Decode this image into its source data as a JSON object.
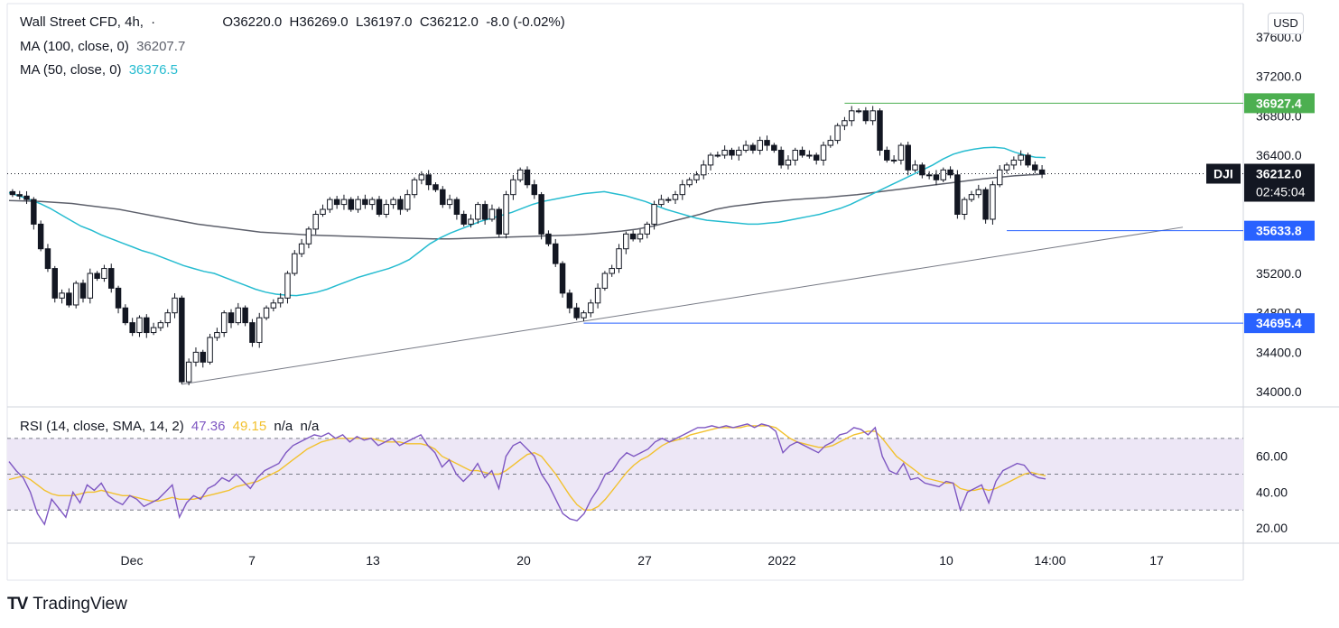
{
  "header": {
    "symbol": "Wall Street CFD, 4h,",
    "dot": "·",
    "ohlc": "O36220.0  H36269.0  L36197.0  C36212.0  -8.0 (-0.02%)",
    "ma100_label": "MA (100, close, 0)",
    "ma100_value": "36207.7",
    "ma50_label": "MA (50, close, 0)",
    "ma50_value": "36376.5",
    "rsi_label": "RSI (14, close, SMA, 14, 2)",
    "rsi_value": "47.36",
    "rsi_ma_value": "49.15",
    "rsi_na": "n/a  n/a"
  },
  "currency_button": "USD",
  "branding": {
    "logo": "TV",
    "name": "TradingView"
  },
  "price_axis": {
    "ticks": [
      "37600.0",
      "37200.0",
      "36800.0",
      "36400.0",
      "35200.0",
      "34800.0",
      "34400.0",
      "34000.0"
    ],
    "ticker_badge": "DJI",
    "current_price": "36212.0",
    "countdown": "02:45:04",
    "levels": [
      {
        "label": "36927.4",
        "color": "#4caf50"
      },
      {
        "label": "35633.8",
        "color": "#2962ff"
      },
      {
        "label": "34695.4",
        "color": "#2962ff"
      }
    ]
  },
  "rsi_axis": {
    "ticks": [
      "60.00",
      "40.00",
      "20.00"
    ]
  },
  "time_axis": {
    "ticks": [
      "Dec",
      "7",
      "13",
      "20",
      "27",
      "2022",
      "10",
      "14:00",
      "17"
    ]
  },
  "colors": {
    "ma50": "#26bcd0",
    "ma100": "#5d606b",
    "rsi": "#7e57c2",
    "rsi_ma": "#f2c12e",
    "rsi_band": "#ede7f6",
    "level_green": "#4caf50",
    "level_blue": "#2962ff"
  },
  "chart_data": {
    "type": "candlestick",
    "interval": "4h",
    "ylim": [
      33900,
      37700
    ],
    "rsi_ylim": [
      15,
      82
    ],
    "rsi_bands": [
      30,
      50,
      70
    ],
    "closes": [
      36000,
      35985,
      35950,
      35700,
      35450,
      35250,
      34950,
      35000,
      34880,
      35100,
      34950,
      35200,
      35150,
      35250,
      35050,
      34850,
      34700,
      34600,
      34750,
      34600,
      34650,
      34700,
      34800,
      34950,
      34100,
      34300,
      34400,
      34300,
      34550,
      34600,
      34800,
      34700,
      34850,
      34700,
      34500,
      34750,
      34850,
      34900,
      34950,
      35200,
      35400,
      35500,
      35650,
      35800,
      35850,
      35950,
      35900,
      35950,
      35850,
      35950,
      35900,
      35950,
      35800,
      35900,
      35950,
      35850,
      36000,
      36150,
      36200,
      36100,
      36050,
      35900,
      35950,
      35800,
      35700,
      35750,
      35900,
      35750,
      35850,
      35600,
      36000,
      36150,
      36250,
      36100,
      36000,
      35600,
      35500,
      35300,
      35000,
      34850,
      34750,
      34800,
      34900,
      35050,
      35200,
      35250,
      35450,
      35600,
      35550,
      35600,
      35700,
      35900,
      35950,
      35950,
      36000,
      36100,
      36150,
      36200,
      36300,
      36400,
      36400,
      36450,
      36400,
      36450,
      36500,
      36450,
      36550,
      36500,
      36450,
      36300,
      36350,
      36450,
      36400,
      36400,
      36350,
      36500,
      36550,
      36700,
      36750,
      36850,
      36850,
      36750,
      36850,
      36450,
      36350,
      36350,
      36500,
      36250,
      36300,
      36200,
      36200,
      36150,
      36250,
      36200,
      35800,
      35950,
      36000,
      36050,
      35750,
      36100,
      36250,
      36300,
      36350,
      36400,
      36300,
      36250,
      36212
    ],
    "ma50": [
      36020,
      35985,
      35950,
      35910,
      35860,
      35800,
      35740,
      35680,
      35640,
      35590,
      35550,
      35510,
      35470,
      35430,
      35400,
      35360,
      35320,
      35280,
      35250,
      35220,
      35200,
      35160,
      35120,
      35080,
      35040,
      35010,
      34990,
      34980,
      34975,
      34990,
      35010,
      35040,
      35080,
      35120,
      35160,
      35190,
      35220,
      35250,
      35290,
      35340,
      35420,
      35500,
      35560,
      35610,
      35650,
      35690,
      35730,
      35760,
      35790,
      35820,
      35860,
      35900,
      35930,
      35950,
      35970,
      35990,
      36010,
      36020,
      36030,
      36010,
      35990,
      35960,
      35930,
      35890,
      35850,
      35820,
      35790,
      35760,
      35740,
      35730,
      35720,
      35710,
      35700,
      35700,
      35710,
      35720,
      35740,
      35760,
      35780,
      35800,
      35830,
      35860,
      35900,
      35950,
      36000,
      36050,
      36100,
      36150,
      36200,
      36250,
      36300,
      36360,
      36410,
      36440,
      36460,
      36475,
      36480,
      36470,
      36430,
      36400,
      36380,
      36376
    ],
    "ma100": [
      35940,
      35935,
      35930,
      35920,
      35910,
      35890,
      35870,
      35850,
      35820,
      35790,
      35760,
      35730,
      35700,
      35680,
      35660,
      35640,
      35620,
      35610,
      35600,
      35590,
      35585,
      35580,
      35575,
      35570,
      35565,
      35560,
      35555,
      35550,
      35550,
      35555,
      35560,
      35565,
      35570,
      35575,
      35580,
      35585,
      35590,
      35600,
      35615,
      35630,
      35650,
      35680,
      35720,
      35760,
      35800,
      35850,
      35880,
      35900,
      35920,
      35935,
      35950,
      35960,
      35970,
      35985,
      36000,
      36020,
      36040,
      36060,
      36080,
      36100,
      36120,
      36140,
      36160,
      36175,
      36190,
      36200,
      36207.7
    ],
    "rsi": [
      57,
      52,
      48,
      40,
      28,
      22,
      36,
      31,
      26,
      40,
      34,
      44,
      41,
      45,
      38,
      35,
      33,
      38,
      36,
      32,
      34,
      36,
      40,
      44,
      26,
      34,
      38,
      36,
      42,
      44,
      48,
      46,
      50,
      46,
      42,
      48,
      52,
      54,
      56,
      62,
      66,
      68,
      70,
      72,
      71,
      73,
      70,
      72,
      68,
      71,
      69,
      70,
      66,
      68,
      70,
      66,
      68,
      70,
      72,
      66,
      62,
      54,
      58,
      50,
      46,
      50,
      56,
      48,
      52,
      42,
      60,
      66,
      68,
      64,
      60,
      50,
      44,
      36,
      28,
      25,
      24,
      28,
      36,
      42,
      50,
      52,
      58,
      62,
      60,
      62,
      64,
      68,
      70,
      68,
      70,
      72,
      74,
      76,
      76,
      77,
      76,
      77,
      76,
      77,
      78,
      76,
      78,
      77,
      74,
      62,
      66,
      68,
      66,
      64,
      62,
      66,
      68,
      72,
      73,
      76,
      75,
      72,
      76,
      60,
      52,
      50,
      56,
      47,
      48,
      45,
      44,
      43,
      46,
      45,
      30,
      40,
      42,
      44,
      34,
      46,
      52,
      54,
      56,
      55,
      50,
      48,
      47.36
    ],
    "rsi_ma": [
      47,
      48,
      49,
      47,
      44,
      41,
      39,
      38,
      38,
      38,
      39,
      40,
      40,
      41,
      40,
      39,
      38,
      38,
      37,
      36,
      35,
      35,
      36,
      37,
      36,
      36,
      36,
      37,
      38,
      39,
      40,
      41,
      43,
      44,
      45,
      46,
      48,
      50,
      52,
      55,
      58,
      61,
      64,
      66,
      68,
      69,
      70,
      70,
      70,
      70,
      70,
      70,
      69,
      68,
      68,
      68,
      67,
      67,
      67,
      66,
      64,
      60,
      58,
      56,
      54,
      52,
      52,
      51,
      50,
      50,
      52,
      55,
      58,
      61,
      62,
      60,
      55,
      50,
      44,
      38,
      33,
      30,
      30,
      32,
      36,
      41,
      46,
      51,
      55,
      58,
      60,
      63,
      66,
      68,
      69,
      70,
      72,
      73,
      74,
      75,
      76,
      76,
      76,
      76,
      77,
      77,
      77,
      77,
      76,
      73,
      70,
      68,
      67,
      66,
      65,
      65,
      66,
      68,
      70,
      72,
      73,
      74,
      74,
      70,
      65,
      60,
      57,
      54,
      51,
      48,
      47,
      46,
      45,
      45,
      42,
      41,
      41,
      42,
      41,
      42,
      44,
      46,
      48,
      50,
      51,
      50,
      49.15
    ]
  }
}
